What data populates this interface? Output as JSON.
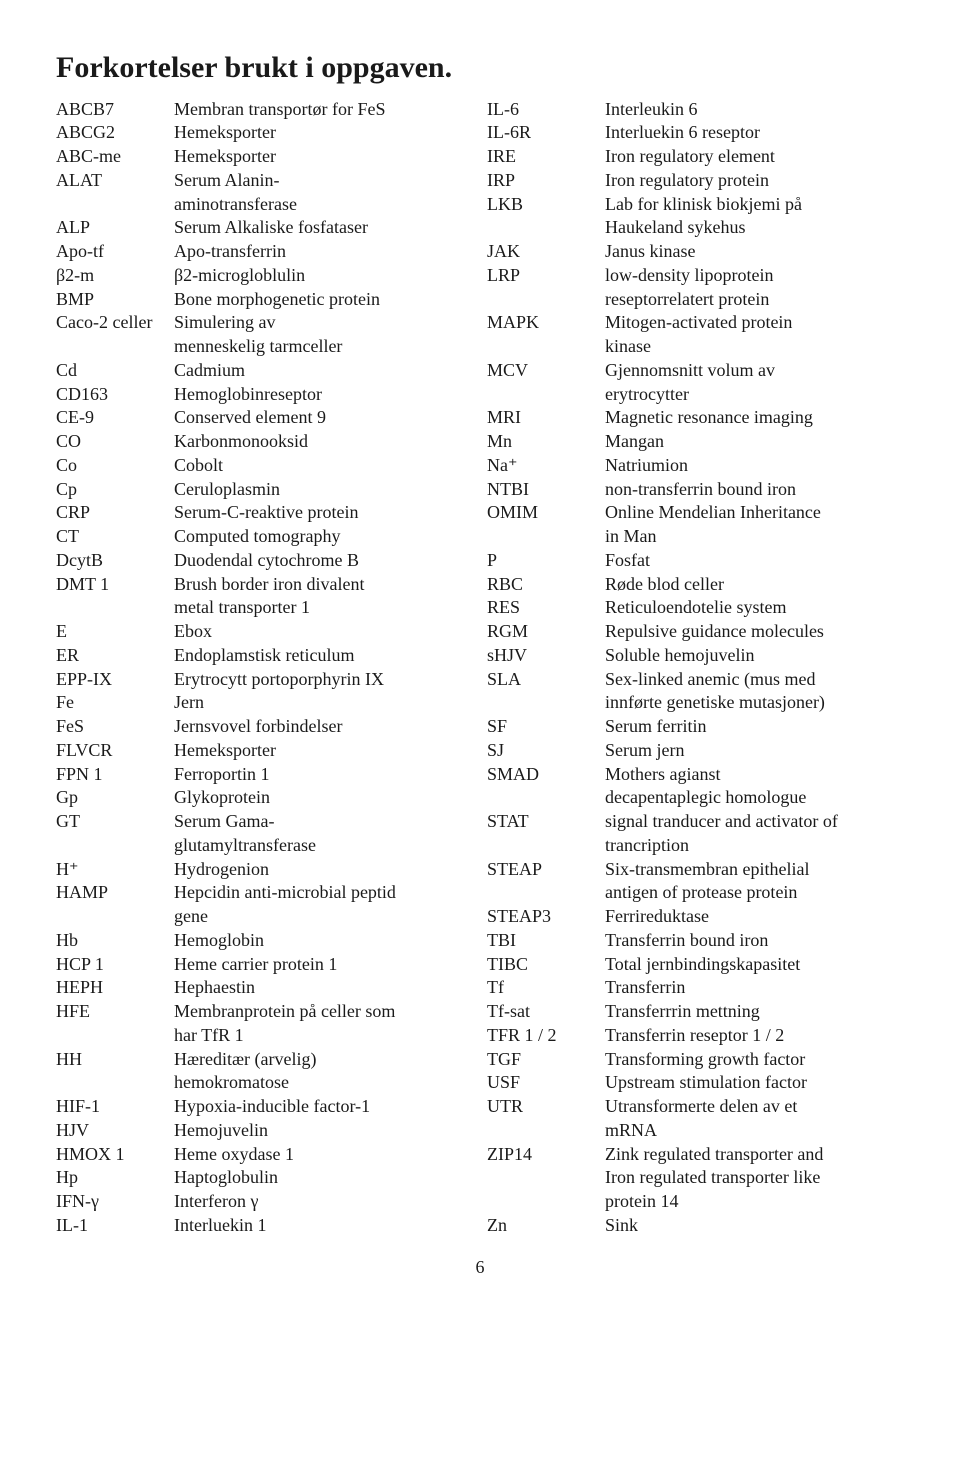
{
  "title": "Forkortelser brukt i oppgaven.",
  "pageNumber": "6",
  "left": [
    {
      "abbr": "ABCB7",
      "def": "Membran transportør for FeS"
    },
    {
      "abbr": "ABCG2",
      "def": "Hemeksporter"
    },
    {
      "abbr": "ABC-me",
      "def": "Hemeksporter"
    },
    {
      "abbr": "ALAT",
      "def": "Serum Alanin-"
    },
    {
      "abbr": "",
      "def": "aminotransferase"
    },
    {
      "abbr": "ALP",
      "def": "Serum Alkaliske fosfataser"
    },
    {
      "abbr": "Apo-tf",
      "def": "Apo-transferrin"
    },
    {
      "abbr": "β2-m",
      "def": "β2-microgloblulin"
    },
    {
      "abbr": "BMP",
      "def": "Bone morphogenetic protein"
    },
    {
      "abbr": "Caco-2 celler",
      "def": "Simulering av"
    },
    {
      "abbr": "",
      "def": "menneskelig tarmceller"
    },
    {
      "abbr": "Cd",
      "def": "Cadmium"
    },
    {
      "abbr": "CD163",
      "def": "Hemoglobinreseptor"
    },
    {
      "abbr": "CE-9",
      "def": "Conserved element 9"
    },
    {
      "abbr": "CO",
      "def": "Karbonmonooksid"
    },
    {
      "abbr": "Co",
      "def": "Cobolt"
    },
    {
      "abbr": "Cp",
      "def": "Ceruloplasmin"
    },
    {
      "abbr": "CRP",
      "def": "Serum-C-reaktive protein"
    },
    {
      "abbr": "CT",
      "def": "Computed tomography"
    },
    {
      "abbr": "DcytB",
      "def": "Duodendal cytochrome B"
    },
    {
      "abbr": "DMT 1",
      "def": "Brush border iron divalent"
    },
    {
      "abbr": "",
      "def": "metal transporter 1"
    },
    {
      "abbr": "E",
      "def": "Ebox"
    },
    {
      "abbr": "ER",
      "def": "Endoplamstisk reticulum"
    },
    {
      "abbr": "EPP-IX",
      "def": "Erytrocytt portoporphyrin IX"
    },
    {
      "abbr": "Fe",
      "def": "Jern"
    },
    {
      "abbr": "FeS",
      "def": "Jernsvovel forbindelser"
    },
    {
      "abbr": "FLVCR",
      "def": "Hemeksporter"
    },
    {
      "abbr": "FPN 1",
      "def": "Ferroportin 1"
    },
    {
      "abbr": "Gp",
      "def": "Glykoprotein"
    },
    {
      "abbr": "GT",
      "def": "Serum Gama-"
    },
    {
      "abbr": "",
      "def": "glutamyltransferase"
    },
    {
      "abbr": "H⁺",
      "def": "Hydrogenion"
    },
    {
      "abbr": "HAMP",
      "def": "Hepcidin anti-microbial peptid"
    },
    {
      "abbr": "",
      "def": "gene"
    },
    {
      "abbr": "Hb",
      "def": "Hemoglobin"
    },
    {
      "abbr": "HCP 1",
      "def": "Heme carrier protein 1"
    },
    {
      "abbr": "HEPH",
      "def": "Hephaestin"
    },
    {
      "abbr": "HFE",
      "def": "Membranprotein på celler som"
    },
    {
      "abbr": "",
      "def": "har TfR 1"
    },
    {
      "abbr": "HH",
      "def": "Hæreditær (arvelig)"
    },
    {
      "abbr": "",
      "def": "hemokromatose"
    },
    {
      "abbr": "HIF-1",
      "def": "Hypoxia-inducible factor-1"
    },
    {
      "abbr": "HJV",
      "def": "Hemojuvelin"
    },
    {
      "abbr": "HMOX 1",
      "def": "Heme oxydase 1"
    },
    {
      "abbr": "Hp",
      "def": "Haptoglobulin"
    },
    {
      "abbr": "IFN-γ",
      "def": "Interferon γ"
    },
    {
      "abbr": "IL-1",
      "def": "Interluekin 1"
    }
  ],
  "right": [
    {
      "abbr": "IL-6",
      "def": "Interleukin 6"
    },
    {
      "abbr": "IL-6R",
      "def": "Interluekin 6 reseptor"
    },
    {
      "abbr": "IRE",
      "def": "Iron regulatory element"
    },
    {
      "abbr": "IRP",
      "def": "Iron regulatory protein"
    },
    {
      "abbr": "LKB",
      "def": "Lab for klinisk biokjemi på"
    },
    {
      "abbr": "",
      "def": "Haukeland sykehus"
    },
    {
      "abbr": "JAK",
      "def": "Janus kinase"
    },
    {
      "abbr": "LRP",
      "def": "low-density lipoprotein"
    },
    {
      "abbr": "",
      "def": "reseptorrelatert protein"
    },
    {
      "abbr": "MAPK",
      "def": "Mitogen-activated protein"
    },
    {
      "abbr": "",
      "def": "kinase"
    },
    {
      "abbr": "MCV",
      "def": "Gjennomsnitt volum av"
    },
    {
      "abbr": "",
      "def": "erytrocytter"
    },
    {
      "abbr": "MRI",
      "def": "Magnetic resonance imaging"
    },
    {
      "abbr": "Mn",
      "def": "Mangan"
    },
    {
      "abbr": "Na⁺",
      "def": "Natriumion"
    },
    {
      "abbr": "NTBI",
      "def": "non-transferrin bound iron"
    },
    {
      "abbr": "OMIM",
      "def": "Online Mendelian Inheritance"
    },
    {
      "abbr": "",
      "def": "in Man"
    },
    {
      "abbr": "P",
      "def": "Fosfat"
    },
    {
      "abbr": "RBC",
      "def": "Røde blod celler"
    },
    {
      "abbr": "RES",
      "def": "Reticuloendotelie system"
    },
    {
      "abbr": "RGM",
      "def": "Repulsive guidance molecules"
    },
    {
      "abbr": "sHJV",
      "def": "Soluble hemojuvelin"
    },
    {
      "abbr": "SLA",
      "def": "Sex-linked anemic (mus med"
    },
    {
      "abbr": "",
      "def": "innførte genetiske mutasjoner)"
    },
    {
      "abbr": "SF",
      "def": "Serum ferritin"
    },
    {
      "abbr": "SJ",
      "def": "Serum jern"
    },
    {
      "abbr": "SMAD",
      "def": "Mothers agianst"
    },
    {
      "abbr": "",
      "def": "decapentaplegic homologue"
    },
    {
      "abbr": "STAT",
      "def": "signal tranducer and activator of"
    },
    {
      "abbr": "",
      "def": "trancription"
    },
    {
      "abbr": "STEAP",
      "def": "Six-transmembran epithelial"
    },
    {
      "abbr": "",
      "def": "antigen of protease protein"
    },
    {
      "abbr": "STEAP3",
      "def": "Ferrireduktase"
    },
    {
      "abbr": "TBI",
      "def": "Transferrin bound iron"
    },
    {
      "abbr": "TIBC",
      "def": "Total jernbindingskapasitet"
    },
    {
      "abbr": "Tf",
      "def": "Transferrin"
    },
    {
      "abbr": "Tf-sat",
      "def": "Transferrrin mettning"
    },
    {
      "abbr": "TFR  1 / 2",
      "def": "Transferrin reseptor  1 / 2"
    },
    {
      "abbr": "TGF",
      "def": "Transforming growth factor"
    },
    {
      "abbr": "USF",
      "def": "Upstream stimulation factor"
    },
    {
      "abbr": "UTR",
      "def": "Utransformerte delen av et"
    },
    {
      "abbr": "",
      "def": "mRNA"
    },
    {
      "abbr": "ZIP14",
      "def": "Zink regulated transporter and"
    },
    {
      "abbr": "",
      "def": "Iron regulated transporter like"
    },
    {
      "abbr": "",
      "def": "protein 14"
    },
    {
      "abbr": "Zn",
      "def": "Sink"
    }
  ]
}
